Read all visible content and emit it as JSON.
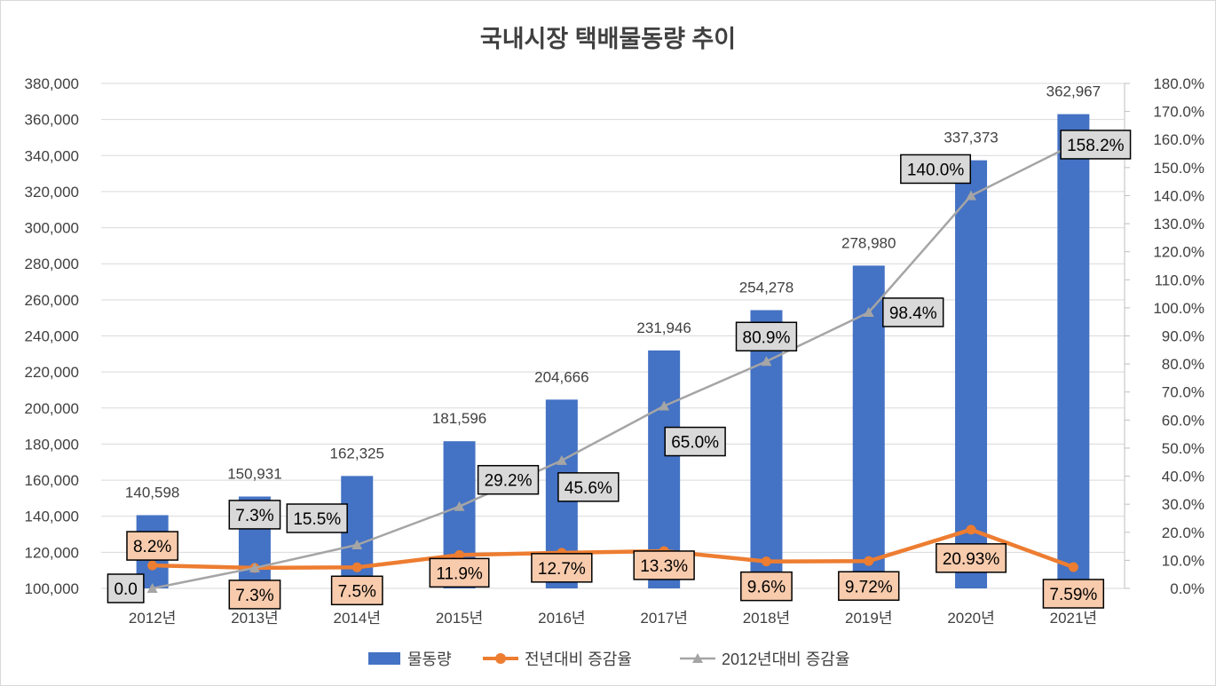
{
  "chart_data": {
    "type": "bar",
    "title": "국내시장 택배물동량 추이",
    "categories": [
      "2012년",
      "2013년",
      "2014년",
      "2015년",
      "2016년",
      "2017년",
      "2018년",
      "2019년",
      "2020년",
      "2021년"
    ],
    "y_left": {
      "min": 100000,
      "max": 380000,
      "step": 20000,
      "ticks": [
        "100,000",
        "120,000",
        "140,000",
        "160,000",
        "180,000",
        "200,000",
        "220,000",
        "240,000",
        "260,000",
        "280,000",
        "300,000",
        "320,000",
        "340,000",
        "360,000",
        "380,000"
      ]
    },
    "y_right": {
      "min": 0,
      "max": 180,
      "step": 10,
      "ticks": [
        "0.0%",
        "10.0%",
        "20.0%",
        "30.0%",
        "40.0%",
        "50.0%",
        "60.0%",
        "70.0%",
        "80.0%",
        "90.0%",
        "100.0%",
        "110.0%",
        "120.0%",
        "130.0%",
        "140.0%",
        "150.0%",
        "160.0%",
        "170.0%",
        "180.0%"
      ]
    },
    "series": [
      {
        "name": "물동량",
        "kind": "bar",
        "axis": "left",
        "color": "#4472C4",
        "values": [
          140598,
          150931,
          162325,
          181596,
          204666,
          231946,
          254278,
          278980,
          337373,
          362967
        ],
        "labels": [
          "140,598",
          "150,931",
          "162,325",
          "181,596",
          "204,666",
          "231,946",
          "254,278",
          "278,980",
          "337,373",
          "362,967"
        ]
      },
      {
        "name": "전년대비 증감율",
        "kind": "line",
        "axis": "right",
        "color": "#ED7D31",
        "marker": "circle",
        "values": [
          8.2,
          7.3,
          7.5,
          11.9,
          12.7,
          13.3,
          9.6,
          9.72,
          20.93,
          7.59
        ],
        "labels": [
          "8.2%",
          "7.3%",
          "7.5%",
          "11.9%",
          "12.7%",
          "13.3%",
          "9.6%",
          "9.72%",
          "20.93%",
          "7.59%"
        ]
      },
      {
        "name": "2012년대비 증감율",
        "kind": "line",
        "axis": "right",
        "color": "#A5A5A5",
        "marker": "triangle",
        "values": [
          0,
          7.3,
          15.5,
          29.2,
          45.6,
          65.0,
          80.9,
          98.4,
          140.0,
          158.2
        ],
        "labels": [
          "0.0",
          "7.3%",
          "15.5%",
          "29.2%",
          "45.6%",
          "65.0%",
          "80.9%",
          "98.4%",
          "140.0%",
          "158.2%"
        ]
      }
    ],
    "legend_position": "bottom",
    "grid": true
  }
}
